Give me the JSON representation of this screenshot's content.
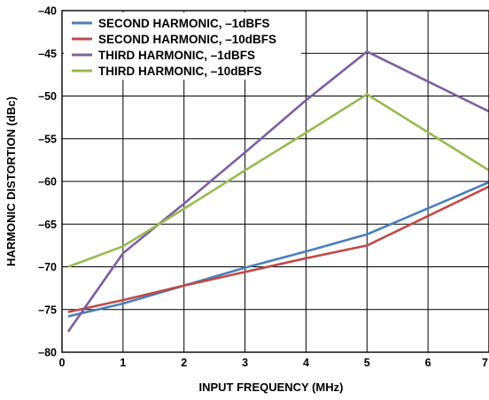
{
  "chart_data": {
    "type": "line",
    "title": "",
    "xlabel": "INPUT FREQUENCY (MHz)",
    "ylabel": "HARMONIC DISTORTION (dBc)",
    "xlim": [
      0,
      7
    ],
    "ylim": [
      -80,
      -40
    ],
    "xticks": [
      0,
      1,
      2,
      3,
      4,
      5,
      6,
      7
    ],
    "yticks": [
      -40,
      -45,
      -50,
      -55,
      -60,
      -65,
      -70,
      -75,
      -80
    ],
    "x_tick_labels": [
      "0",
      "1",
      "2",
      "3",
      "4",
      "5",
      "6",
      "7"
    ],
    "y_tick_labels": [
      "–40",
      "–45",
      "–50",
      "–55",
      "–60",
      "–65",
      "–70",
      "–75",
      "–80"
    ],
    "grid": true,
    "legend_position": "top-left",
    "series": [
      {
        "name": "SECOND HARMONIC, –1dBFS",
        "color": "#4a7ebb",
        "x": [
          0.1,
          1,
          2,
          3,
          4,
          5,
          7
        ],
        "y": [
          -75.8,
          -74.3,
          -72.2,
          -70.1,
          -68.2,
          -66.2,
          -60.1
        ]
      },
      {
        "name": "SECOND HARMONIC, –10dBFS",
        "color": "#be4b48",
        "x": [
          0.1,
          1,
          2,
          3,
          4,
          5,
          7
        ],
        "y": [
          -75.3,
          -73.9,
          -72.2,
          -70.6,
          -69.0,
          -67.5,
          -60.6
        ]
      },
      {
        "name": "THIRD HARMONIC, –1dBFS",
        "color": "#7d5fa0",
        "x": [
          0.1,
          1,
          2,
          3,
          4,
          5,
          7
        ],
        "y": [
          -77.6,
          -68.4,
          -62.6,
          -56.6,
          -50.5,
          -44.8,
          -51.8
        ]
      },
      {
        "name": "THIRD HARMONIC, –10dBFS",
        "color": "#98b954",
        "x": [
          0.1,
          1,
          2,
          3,
          4,
          5,
          7
        ],
        "y": [
          -70.0,
          -67.6,
          -63.2,
          -58.7,
          -54.3,
          -49.8,
          -58.7
        ]
      }
    ]
  }
}
